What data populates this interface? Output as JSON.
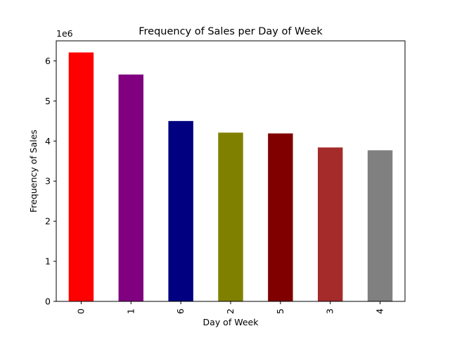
{
  "chart_data": {
    "type": "bar",
    "title": "Frequency of Sales per Day of Week",
    "xlabel": "Day of Week",
    "ylabel": "Frequency of Sales",
    "y_offset_label": "1e6",
    "categories": [
      "0",
      "1",
      "6",
      "2",
      "5",
      "3",
      "4"
    ],
    "values": [
      6.21,
      5.66,
      4.5,
      4.21,
      4.19,
      3.84,
      3.77
    ],
    "colors": [
      "#ff0000",
      "#800080",
      "#000080",
      "#808000",
      "#800000",
      "#a52a2a",
      "#808080"
    ],
    "ylim": [
      0,
      6.5
    ],
    "yticks": [
      0,
      1,
      2,
      3,
      4,
      5,
      6
    ],
    "y_scale_multiplier": 1000000,
    "grid": false,
    "legend": "none"
  }
}
